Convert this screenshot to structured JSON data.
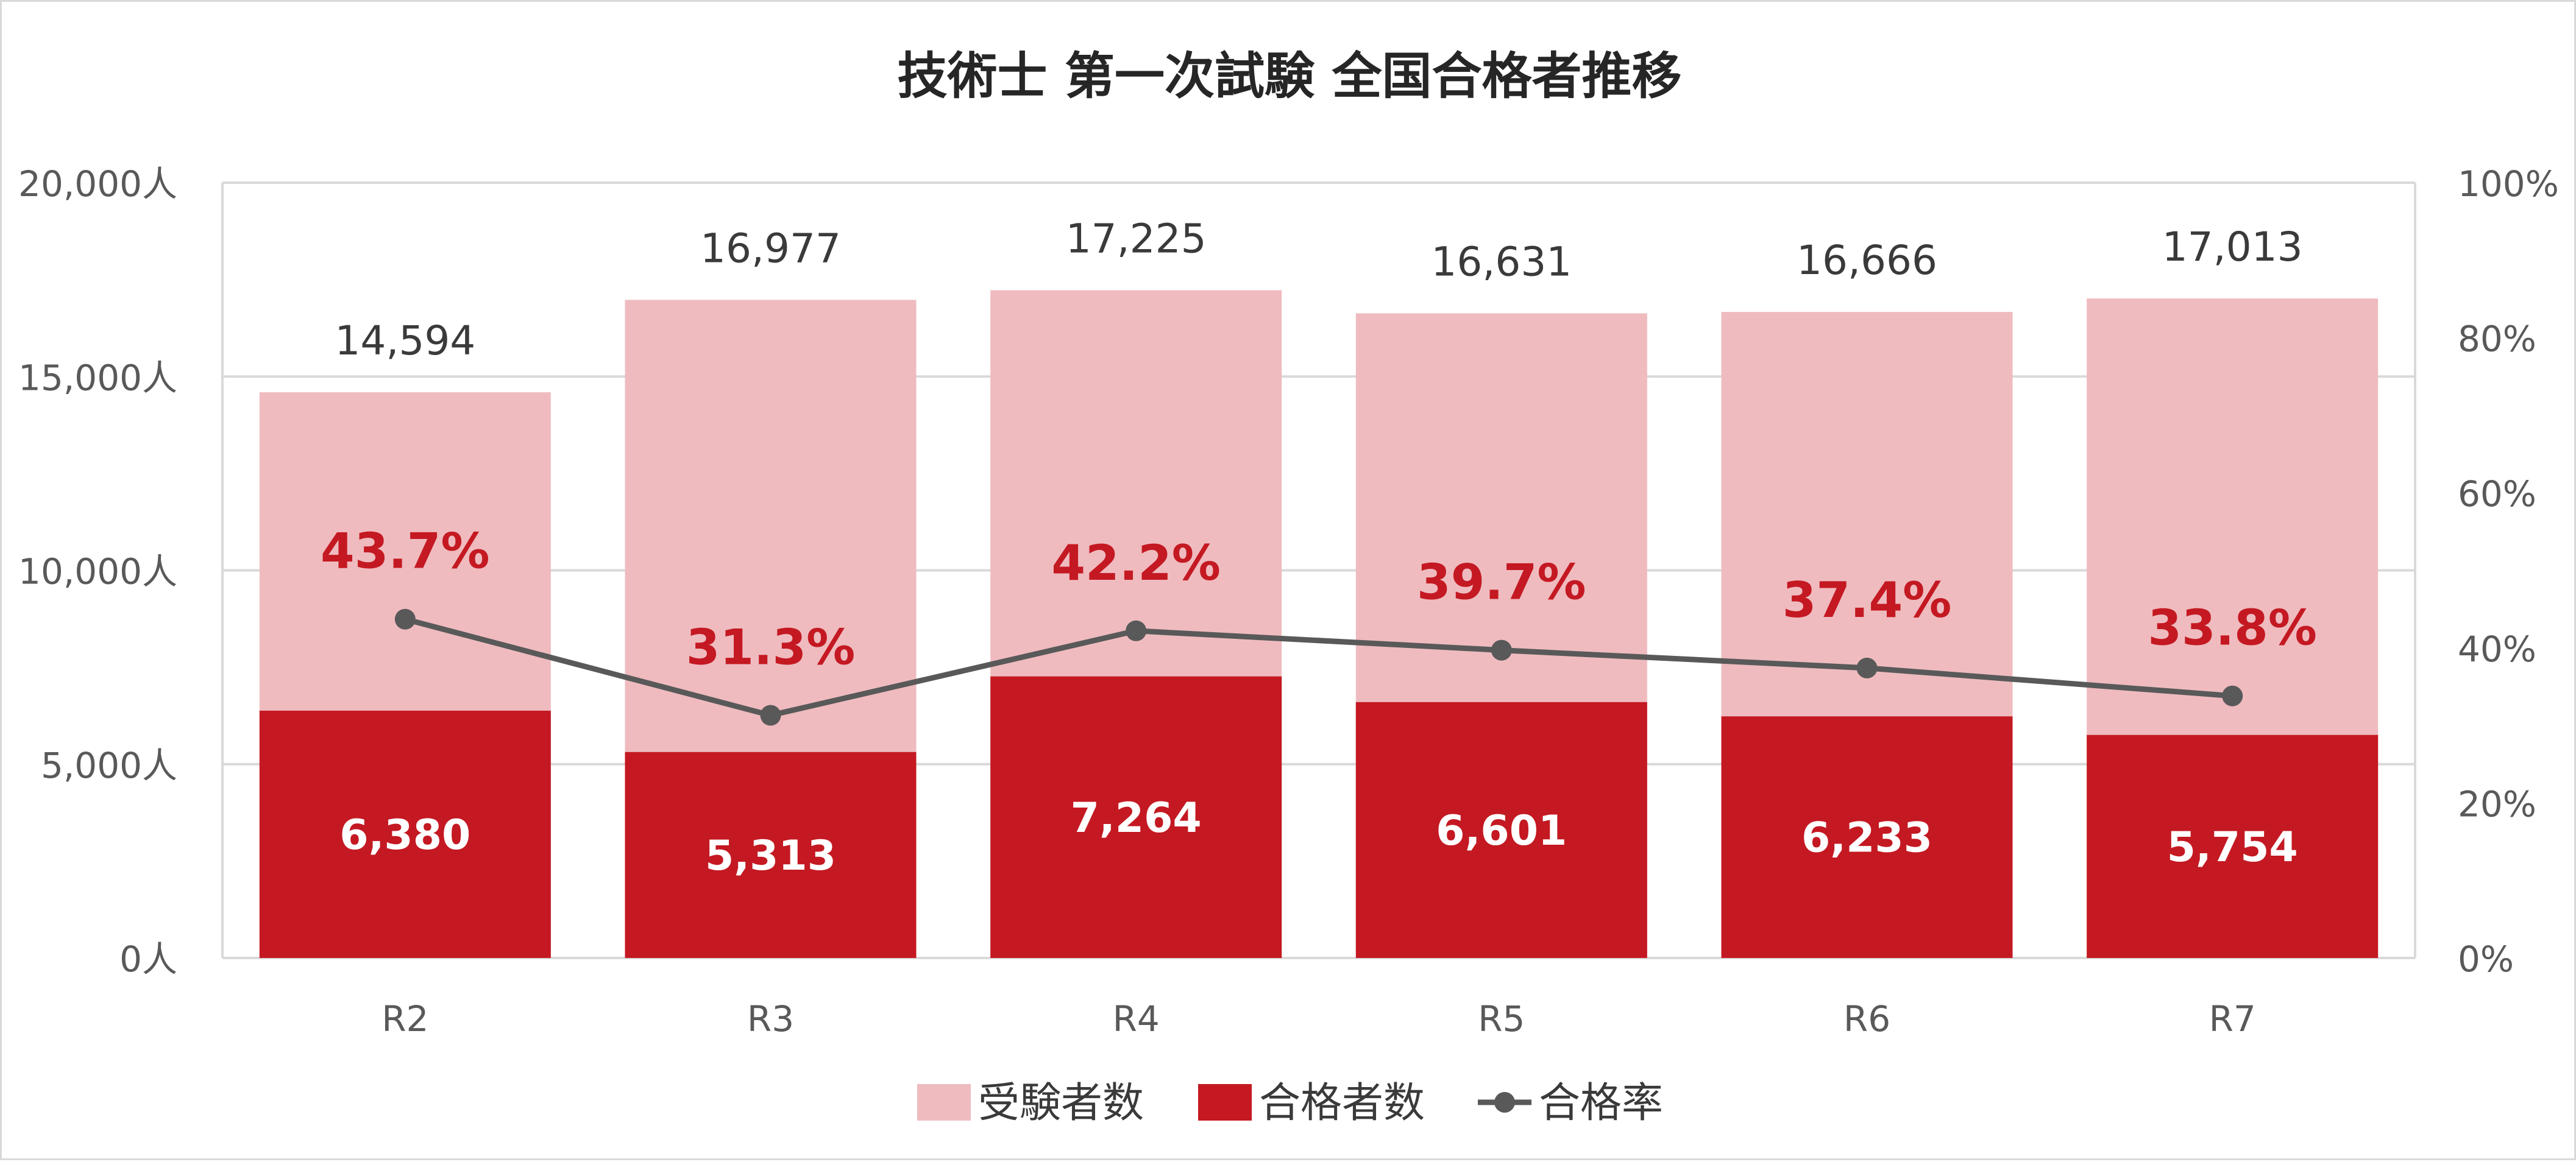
{
  "chart_data": {
    "type": "bar",
    "title": "技術士 第一次試験 全国合格者推移",
    "categories": [
      "R2",
      "R3",
      "R4",
      "R5",
      "R6",
      "R7"
    ],
    "series": [
      {
        "name": "受験者数",
        "kind": "bar",
        "axis": "left",
        "color": "#efbbbf",
        "values": [
          14594,
          16977,
          17225,
          16631,
          16666,
          17013
        ],
        "labels": [
          "14,594",
          "16,977",
          "17,225",
          "16,631",
          "16,666",
          "17,013"
        ]
      },
      {
        "name": "合格者数",
        "kind": "bar",
        "axis": "left",
        "color": "#c41922",
        "values": [
          6380,
          5313,
          7264,
          6601,
          6233,
          5754
        ],
        "labels": [
          "6,380",
          "5,313",
          "7,264",
          "6,601",
          "6,233",
          "5,754"
        ]
      },
      {
        "name": "合格率",
        "kind": "line",
        "axis": "right",
        "color": "#595959",
        "values": [
          43.7,
          31.3,
          42.2,
          39.7,
          37.4,
          33.8
        ],
        "labels": [
          "43.7%",
          "31.3%",
          "42.2%",
          "39.7%",
          "37.4%",
          "33.8%"
        ]
      }
    ],
    "ylim": [
      0,
      20000
    ],
    "y2lim": [
      0,
      100
    ],
    "yticks": [
      "0人",
      "5,000人",
      "10,000人",
      "15,000人",
      "20,000人"
    ],
    "y2ticks": [
      "0%",
      "20%",
      "40%",
      "60%",
      "80%",
      "100%"
    ],
    "grid": true,
    "legend": "bottom",
    "label_colors": {
      "total_label": "#3a3a3a",
      "pass_label": "#ffffff",
      "rate_label": "#c41922",
      "axis_text": "#595959",
      "title": "#262626",
      "gridline": "#d9d9d9"
    }
  }
}
